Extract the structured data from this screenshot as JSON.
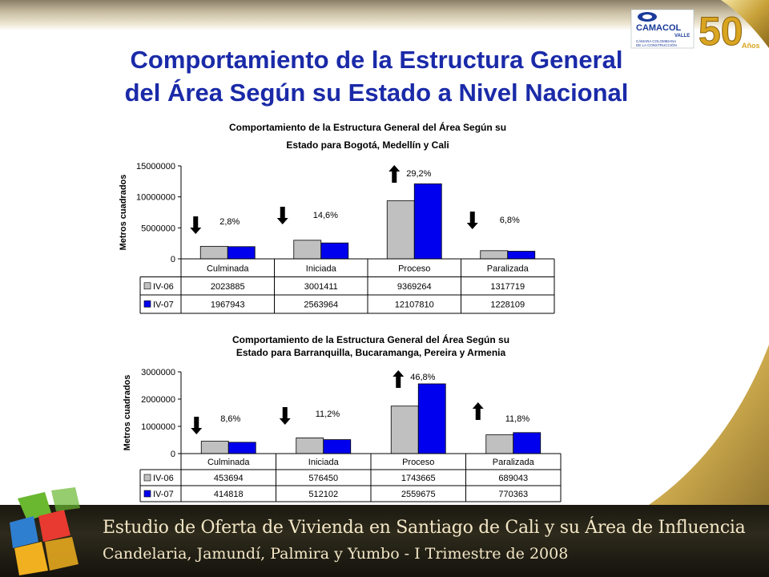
{
  "slide": {
    "title_line1": "Comportamiento de la Estructura General",
    "title_line2": "del Área Según su Estado a Nivel Nacional",
    "footer_line1": "Estudio de Oferta de Vivienda en Santiago de Cali y su Área de Influencia",
    "footer_line2": "Candelaria, Jamundí, Palmira y Yumbo - I Trimestre de 2008"
  },
  "logo": {
    "brand": "CAMACOL",
    "region": "VALLE",
    "tagline1": "CÁMARA COLOMBIANA",
    "tagline2": "DE LA CONSTRUCCIÓN",
    "anniversary": "50",
    "anniversary_word": "Años"
  },
  "colors": {
    "title": "#1a2aa8",
    "iv06": "#c0c0c0",
    "iv07": "#0000ee",
    "gold": "#c9a23a"
  },
  "chart_data": [
    {
      "type": "bar",
      "title_line1": "Comportamiento de la Estructura General del Área Según su",
      "title_line2": "Estado para Bogotá, Medellín y Cali",
      "ylabel": "Metros cuadrados",
      "ylim": [
        0,
        15000000
      ],
      "yticks": [
        0,
        5000000,
        10000000,
        15000000
      ],
      "ytick_labels": [
        "0",
        "5000000",
        "10000000",
        "15000000"
      ],
      "categories": [
        "Culminada",
        "Iniciada",
        "Proceso",
        "Paralizada"
      ],
      "series": [
        {
          "name": "IV-06",
          "values": [
            2023885,
            3001411,
            9369264,
            1317719
          ],
          "labels": [
            "2023885",
            "3001411",
            "9369264",
            "1317719"
          ]
        },
        {
          "name": "IV-07",
          "values": [
            1967943,
            2563964,
            12107810,
            1228109
          ],
          "labels": [
            "1967943",
            "2563964",
            "12107810",
            "1228109"
          ]
        }
      ],
      "annotations": [
        {
          "text": "2,8%",
          "direction": "down"
        },
        {
          "text": "14,6%",
          "direction": "down"
        },
        {
          "text": "29,2%",
          "direction": "up"
        },
        {
          "text": "6,8%",
          "direction": "down"
        }
      ],
      "grid": false,
      "legend": "data-table"
    },
    {
      "type": "bar",
      "title_line1": "Comportamiento de la Estructura General del Área Según su",
      "title_line2": "Estado para Barranquilla, Bucaramanga, Pereira y Armenia",
      "ylabel": "Metros cuadrados",
      "ylim": [
        0,
        3000000
      ],
      "yticks": [
        0,
        1000000,
        2000000,
        3000000
      ],
      "ytick_labels": [
        "0",
        "1000000",
        "2000000",
        "3000000"
      ],
      "categories": [
        "Culminada",
        "Iniciada",
        "Proceso",
        "Paralizada"
      ],
      "series": [
        {
          "name": "IV-06",
          "values": [
            453694,
            576450,
            1743665,
            689043
          ],
          "labels": [
            "453694",
            "576450",
            "1743665",
            "689043"
          ]
        },
        {
          "name": "IV-07",
          "values": [
            414818,
            512102,
            2559675,
            770363
          ],
          "labels": [
            "414818",
            "512102",
            "2559675",
            "770363"
          ]
        }
      ],
      "annotations": [
        {
          "text": "8,6%",
          "direction": "down"
        },
        {
          "text": "11,2%",
          "direction": "down"
        },
        {
          "text": "46,8%",
          "direction": "up"
        },
        {
          "text": "11,8%",
          "direction": "up"
        }
      ],
      "grid": false,
      "legend": "data-table"
    }
  ]
}
